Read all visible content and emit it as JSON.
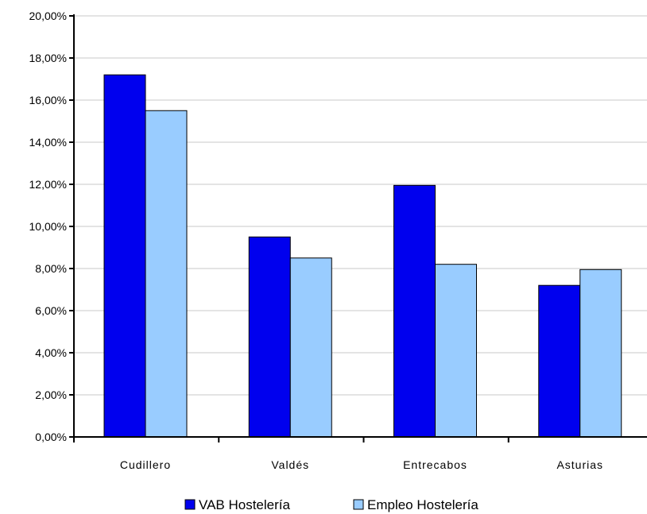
{
  "chart_data": {
    "type": "bar",
    "categories": [
      "Cudillero",
      "Valdés",
      "Entrecabos",
      "Asturias"
    ],
    "series": [
      {
        "name": "VAB Hostelería",
        "values": [
          17.2,
          9.5,
          11.95,
          7.2
        ],
        "color": "#0000ee"
      },
      {
        "name": "Empleo Hostelería",
        "values": [
          15.5,
          8.5,
          8.2,
          7.95
        ],
        "color": "#99ccff"
      }
    ],
    "ylim": [
      0,
      20
    ],
    "yticks": [
      0,
      2,
      4,
      6,
      8,
      10,
      12,
      14,
      16,
      18,
      20
    ],
    "ytick_labels": [
      "0,00%",
      "2,00%",
      "4,00%",
      "6,00%",
      "8,00%",
      "10,00%",
      "12,00%",
      "14,00%",
      "16,00%",
      "18,00%",
      "20,00%"
    ],
    "grid": true,
    "legend_position": "bottom",
    "title": "",
    "xlabel": "",
    "ylabel": ""
  }
}
